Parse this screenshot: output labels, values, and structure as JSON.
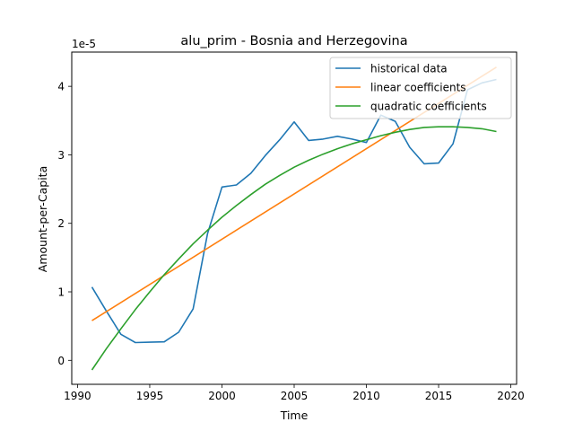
{
  "chart_data": {
    "type": "line",
    "title": "alu_prim - Bosnia and Herzegovina",
    "xlabel": "Time",
    "ylabel": "Amount-per-Capita",
    "y_offset_label": "1e-5",
    "xlim": [
      1989.6,
      2020.4
    ],
    "ylim": [
      -0.35,
      4.5
    ],
    "y_scale_factor": 1e-05,
    "xticks": [
      1990,
      1995,
      2000,
      2005,
      2010,
      2015,
      2020
    ],
    "yticks": [
      0,
      1,
      2,
      3,
      4
    ],
    "grid": false,
    "legend_position": "upper right",
    "series": [
      {
        "name": "historical data",
        "color": "#1f77b4",
        "x": [
          1991,
          1992,
          1993,
          1994,
          1995,
          1996,
          1997,
          1998,
          1999,
          2000,
          2001,
          2002,
          2003,
          2004,
          2005,
          2006,
          2007,
          2008,
          2009,
          2010,
          2011,
          2012,
          2013,
          2014,
          2015,
          2016,
          2017,
          2018,
          2019
        ],
        "y": [
          1.07,
          0.72,
          0.38,
          0.26,
          0.265,
          0.27,
          0.41,
          0.75,
          1.85,
          2.53,
          2.56,
          2.73,
          2.99,
          3.22,
          3.48,
          3.21,
          3.23,
          3.27,
          3.23,
          3.18,
          3.58,
          3.49,
          3.11,
          2.87,
          2.88,
          3.16,
          3.95,
          4.05,
          4.1
        ]
      },
      {
        "name": "linear coefficients",
        "color": "#ff7f0e",
        "x": [
          1991,
          2019
        ],
        "y": [
          0.58,
          4.28
        ]
      },
      {
        "name": "quadratic coefficients",
        "color": "#2ca02c",
        "x": [
          1991,
          1992,
          1993,
          1994,
          1995,
          1996,
          1997,
          1998,
          1999,
          2000,
          2001,
          2002,
          2003,
          2004,
          2005,
          2006,
          2007,
          2008,
          2009,
          2010,
          2011,
          2012,
          2013,
          2014,
          2015,
          2016,
          2017,
          2018,
          2019
        ],
        "y": [
          -0.14,
          0.17,
          0.46,
          0.74,
          1.0,
          1.25,
          1.48,
          1.7,
          1.9,
          2.09,
          2.26,
          2.42,
          2.57,
          2.7,
          2.82,
          2.92,
          3.01,
          3.09,
          3.16,
          3.22,
          3.28,
          3.33,
          3.37,
          3.4,
          3.41,
          3.41,
          3.4,
          3.38,
          3.34
        ]
      }
    ]
  }
}
